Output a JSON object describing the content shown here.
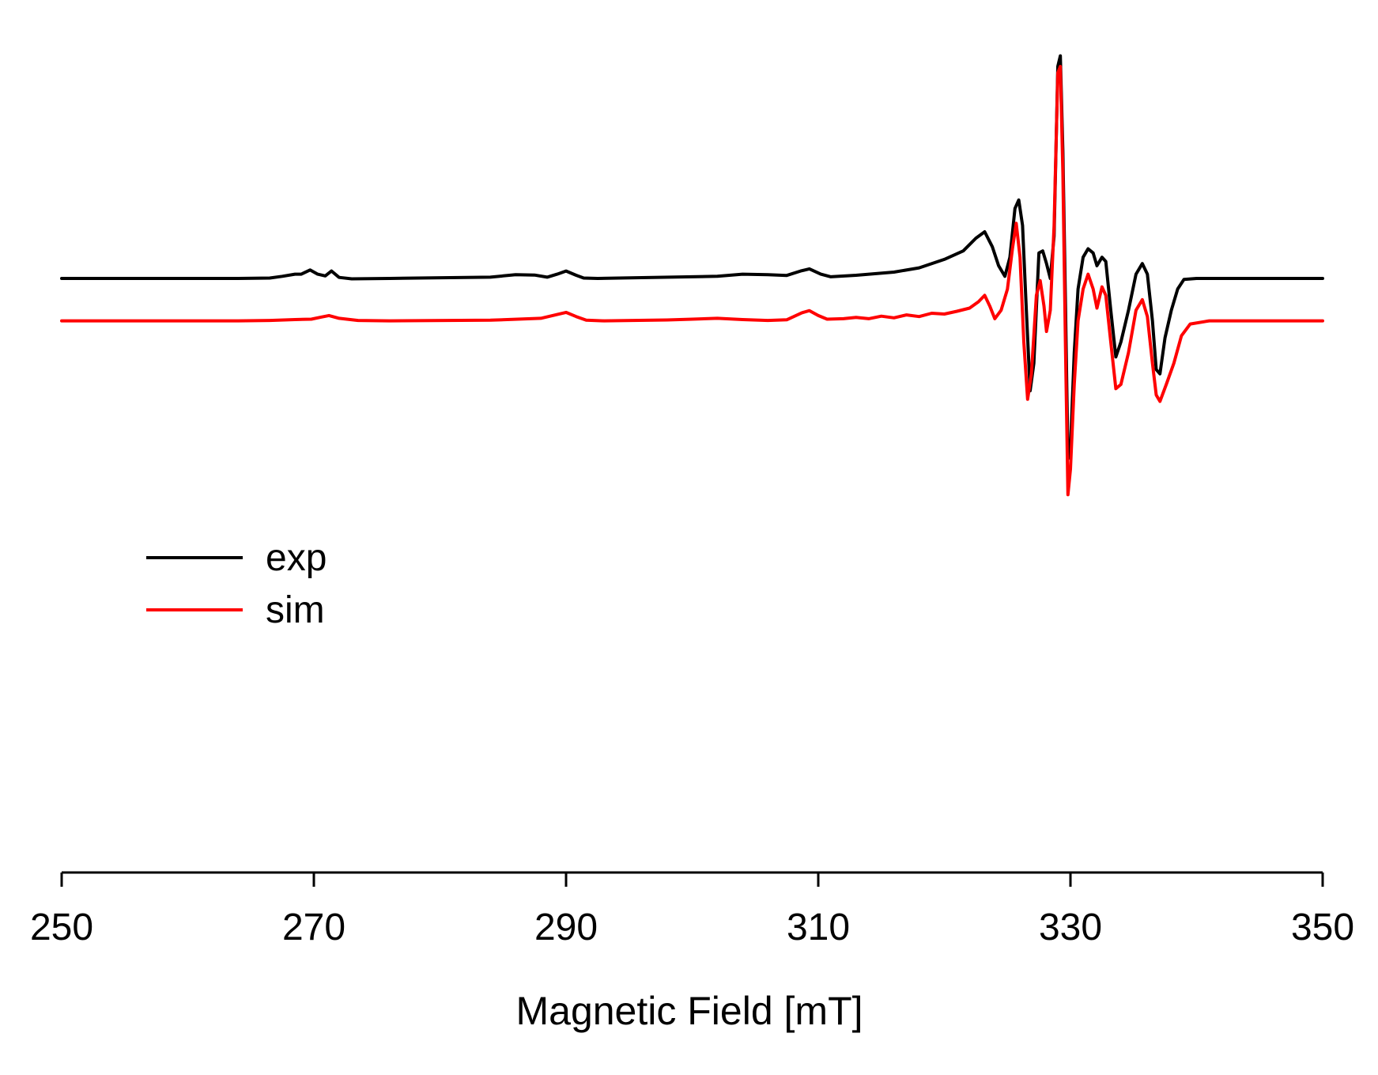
{
  "chart_data": {
    "type": "line",
    "title": "",
    "xlabel": "Magnetic Field [mT]",
    "ylabel": "",
    "xlim": [
      250,
      350
    ],
    "ylim": [
      -1.1,
      1.25
    ],
    "grid": false,
    "legend_position": "left-middle",
    "x_ticks": [
      250,
      270,
      290,
      310,
      330,
      350
    ],
    "x_tick_labels": [
      "250",
      "270",
      "290",
      "310",
      "330",
      "350"
    ],
    "series": [
      {
        "name": "exp",
        "color": "#000000",
        "baseline": 0.0,
        "points": [
          [
            250,
            0
          ],
          [
            264,
            0
          ],
          [
            266.5,
            0.002
          ],
          [
            267.5,
            0.01
          ],
          [
            268.5,
            0.02
          ],
          [
            269.0,
            0.02
          ],
          [
            269.7,
            0.04
          ],
          [
            270.3,
            0.02
          ],
          [
            270.9,
            0.012
          ],
          [
            271.4,
            0.035
          ],
          [
            272.0,
            0.005
          ],
          [
            273,
            -0.002
          ],
          [
            276,
            0
          ],
          [
            284,
            0.006
          ],
          [
            286,
            0.018
          ],
          [
            287.5,
            0.016
          ],
          [
            288.5,
            0.006
          ],
          [
            289.3,
            0.02
          ],
          [
            290.0,
            0.035
          ],
          [
            290.8,
            0.015
          ],
          [
            291.4,
            0.002
          ],
          [
            292.5,
            0
          ],
          [
            300,
            0.008
          ],
          [
            302,
            0.01
          ],
          [
            304,
            0.02
          ],
          [
            306,
            0.018
          ],
          [
            307.5,
            0.014
          ],
          [
            308.6,
            0.035
          ],
          [
            309.3,
            0.045
          ],
          [
            310.2,
            0.02
          ],
          [
            311,
            0.008
          ],
          [
            313,
            0.015
          ],
          [
            316,
            0.03
          ],
          [
            318,
            0.05
          ],
          [
            320,
            0.09
          ],
          [
            321.5,
            0.13
          ],
          [
            322.5,
            0.19
          ],
          [
            323.2,
            0.22
          ],
          [
            323.8,
            0.15
          ],
          [
            324.3,
            0.06
          ],
          [
            324.8,
            0.01
          ],
          [
            325.2,
            0.1
          ],
          [
            325.6,
            0.33
          ],
          [
            325.9,
            0.37
          ],
          [
            326.2,
            0.25
          ],
          [
            326.5,
            -0.15
          ],
          [
            326.8,
            -0.53
          ],
          [
            327.1,
            -0.4
          ],
          [
            327.5,
            0.12
          ],
          [
            327.8,
            0.13
          ],
          [
            328.1,
            0.07
          ],
          [
            328.4,
            0.0
          ],
          [
            328.7,
            0.2
          ],
          [
            329.0,
            1.0
          ],
          [
            329.2,
            1.05
          ],
          [
            329.4,
            0.6
          ],
          [
            329.6,
            -0.1
          ],
          [
            329.8,
            -0.85
          ],
          [
            330.0,
            -0.8
          ],
          [
            330.3,
            -0.35
          ],
          [
            330.6,
            -0.05
          ],
          [
            331.0,
            0.1
          ],
          [
            331.4,
            0.14
          ],
          [
            331.8,
            0.12
          ],
          [
            332.1,
            0.06
          ],
          [
            332.5,
            0.1
          ],
          [
            332.8,
            0.08
          ],
          [
            333.2,
            -0.15
          ],
          [
            333.6,
            -0.37
          ],
          [
            334.0,
            -0.3
          ],
          [
            334.6,
            -0.15
          ],
          [
            335.2,
            0.02
          ],
          [
            335.7,
            0.07
          ],
          [
            336.1,
            0.02
          ],
          [
            336.5,
            -0.2
          ],
          [
            336.8,
            -0.43
          ],
          [
            337.1,
            -0.45
          ],
          [
            337.5,
            -0.28
          ],
          [
            338.0,
            -0.15
          ],
          [
            338.5,
            -0.05
          ],
          [
            339,
            -0.005
          ],
          [
            340,
            0
          ],
          [
            350,
            0
          ]
        ]
      },
      {
        "name": "sim",
        "color": "#ff0000",
        "baseline": -0.2,
        "points": [
          [
            250,
            0
          ],
          [
            264,
            0
          ],
          [
            266.5,
            0.002
          ],
          [
            268.5,
            0.006
          ],
          [
            269.8,
            0.008
          ],
          [
            270.6,
            0.018
          ],
          [
            271.2,
            0.025
          ],
          [
            272.0,
            0.012
          ],
          [
            273.5,
            0.002
          ],
          [
            276,
            0
          ],
          [
            284,
            0.003
          ],
          [
            288,
            0.012
          ],
          [
            289.3,
            0.03
          ],
          [
            290.0,
            0.04
          ],
          [
            290.8,
            0.02
          ],
          [
            291.6,
            0.003
          ],
          [
            293,
            0
          ],
          [
            298,
            0.004
          ],
          [
            300,
            0.008
          ],
          [
            302,
            0.012
          ],
          [
            304,
            0.006
          ],
          [
            306,
            0.002
          ],
          [
            307.5,
            0.005
          ],
          [
            308.7,
            0.038
          ],
          [
            309.3,
            0.048
          ],
          [
            310.0,
            0.025
          ],
          [
            310.7,
            0.008
          ],
          [
            312,
            0.01
          ],
          [
            313,
            0.016
          ],
          [
            314,
            0.01
          ],
          [
            315,
            0.022
          ],
          [
            316,
            0.014
          ],
          [
            317,
            0.028
          ],
          [
            318,
            0.02
          ],
          [
            319,
            0.036
          ],
          [
            320,
            0.032
          ],
          [
            321,
            0.045
          ],
          [
            322,
            0.06
          ],
          [
            322.7,
            0.09
          ],
          [
            323.2,
            0.12
          ],
          [
            323.6,
            0.07
          ],
          [
            324.0,
            0.01
          ],
          [
            324.5,
            0.05
          ],
          [
            325.0,
            0.15
          ],
          [
            325.4,
            0.34
          ],
          [
            325.7,
            0.46
          ],
          [
            326.0,
            0.3
          ],
          [
            326.3,
            -0.1
          ],
          [
            326.6,
            -0.37
          ],
          [
            326.9,
            -0.25
          ],
          [
            327.3,
            0.12
          ],
          [
            327.6,
            0.19
          ],
          [
            327.9,
            0.07
          ],
          [
            328.1,
            -0.05
          ],
          [
            328.4,
            0.05
          ],
          [
            328.7,
            0.45
          ],
          [
            329.0,
            1.17
          ],
          [
            329.2,
            1.2
          ],
          [
            329.4,
            0.7
          ],
          [
            329.6,
            -0.1
          ],
          [
            329.8,
            -0.82
          ],
          [
            330.0,
            -0.7
          ],
          [
            330.3,
            -0.3
          ],
          [
            330.6,
            0.0
          ],
          [
            331.0,
            0.15
          ],
          [
            331.4,
            0.22
          ],
          [
            331.8,
            0.15
          ],
          [
            332.1,
            0.06
          ],
          [
            332.5,
            0.16
          ],
          [
            332.8,
            0.12
          ],
          [
            333.2,
            -0.1
          ],
          [
            333.6,
            -0.32
          ],
          [
            334.0,
            -0.3
          ],
          [
            334.6,
            -0.15
          ],
          [
            335.2,
            0.05
          ],
          [
            335.7,
            0.1
          ],
          [
            336.1,
            0.02
          ],
          [
            336.5,
            -0.2
          ],
          [
            336.8,
            -0.35
          ],
          [
            337.1,
            -0.38
          ],
          [
            337.6,
            -0.3
          ],
          [
            338.2,
            -0.2
          ],
          [
            338.8,
            -0.07
          ],
          [
            339.5,
            -0.015
          ],
          [
            341,
            0
          ],
          [
            350,
            0
          ]
        ]
      }
    ]
  }
}
